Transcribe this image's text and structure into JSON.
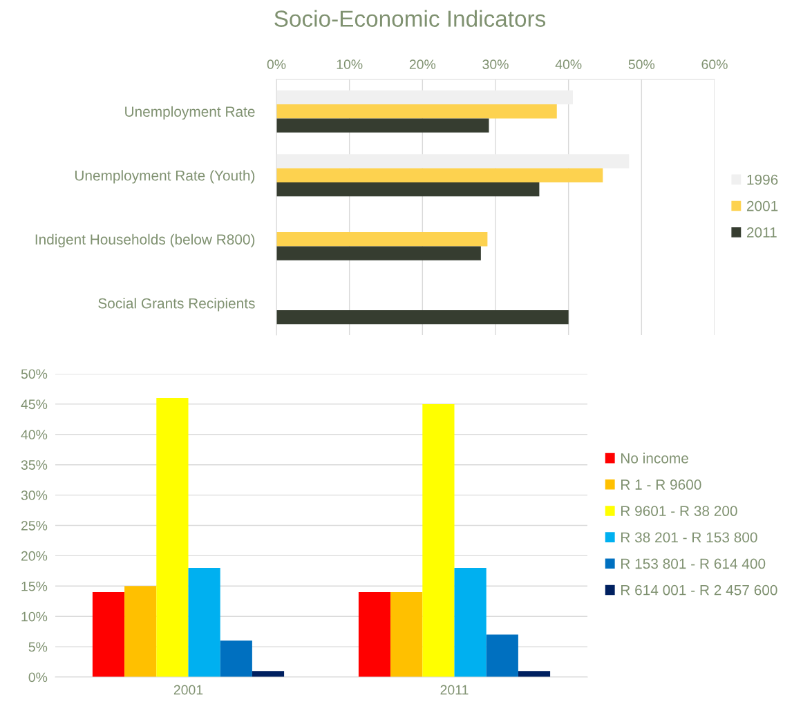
{
  "chart_data": [
    {
      "type": "bar",
      "title": "Socio-Economic Indicators",
      "orientation": "horizontal",
      "categories": [
        "Unemployment Rate",
        "Unemployment Rate (Youth)",
        "Indigent Households (below R800)",
        "Social Grants Recipients"
      ],
      "series": [
        {
          "name": "1996",
          "color": "#f0f0f0",
          "values": [
            40.6,
            48.3,
            null,
            null
          ]
        },
        {
          "name": "2001",
          "color": "#fdd24f",
          "values": [
            38.4,
            44.7,
            28.9,
            null
          ]
        },
        {
          "name": "2011",
          "color": "#363d30",
          "values": [
            29.1,
            36.0,
            28.0,
            40.0
          ]
        }
      ],
      "xlim": [
        0,
        60
      ],
      "xticks": [
        {
          "value": 0,
          "label": "0%"
        },
        {
          "value": 10,
          "label": "10%"
        },
        {
          "value": 20,
          "label": "20%"
        },
        {
          "value": 30,
          "label": "30%"
        },
        {
          "value": 40,
          "label": "40%"
        },
        {
          "value": 50,
          "label": "50%"
        },
        {
          "value": 60,
          "label": "60%"
        }
      ],
      "grid": "x",
      "legend": "right"
    },
    {
      "type": "bar",
      "categories": [
        "2001",
        "2011"
      ],
      "series": [
        {
          "name": "No income",
          "color": "#ff0000",
          "values": [
            14,
            14
          ]
        },
        {
          "name": "R 1 - R 9600",
          "color": "#ffc000",
          "values": [
            15,
            14
          ]
        },
        {
          "name": "R 9601 - R 38 200",
          "color": "#ffff00",
          "values": [
            46,
            45
          ]
        },
        {
          "name": "R 38 201 - R 153 800",
          "color": "#00b0f0",
          "values": [
            18,
            18
          ]
        },
        {
          "name": "R 153 801 - R 614 400",
          "color": "#0070c0",
          "values": [
            6,
            7
          ]
        },
        {
          "name": "R 614 001 - R 2 457 600",
          "color": "#002060",
          "values": [
            1,
            1
          ]
        }
      ],
      "ylim": [
        0,
        50
      ],
      "yticks": [
        {
          "value": 0,
          "label": "0%"
        },
        {
          "value": 5,
          "label": "5%"
        },
        {
          "value": 10,
          "label": "10%"
        },
        {
          "value": 15,
          "label": "15%"
        },
        {
          "value": 20,
          "label": "20%"
        },
        {
          "value": 25,
          "label": "25%"
        },
        {
          "value": 30,
          "label": "30%"
        },
        {
          "value": 35,
          "label": "35%"
        },
        {
          "value": 40,
          "label": "40%"
        },
        {
          "value": 45,
          "label": "45%"
        },
        {
          "value": 50,
          "label": "50%"
        }
      ],
      "grid": "y",
      "legend": "right"
    }
  ]
}
